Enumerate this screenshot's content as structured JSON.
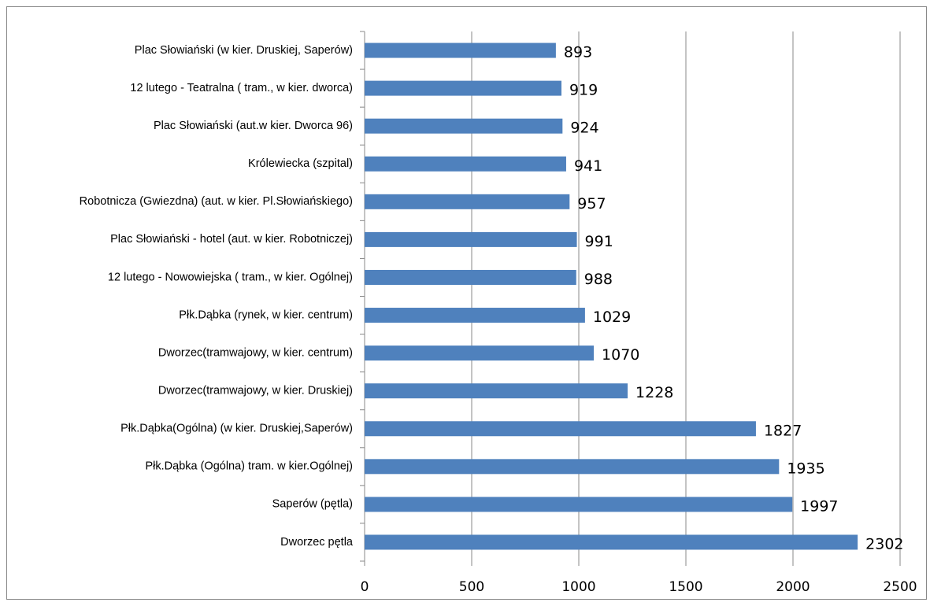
{
  "chart_data": {
    "type": "bar",
    "orientation": "horizontal",
    "categories": [
      "Plac Słowiański (w kier. Druskiej, Saperów)",
      "12 lutego - Teatralna ( tram.,  w kier. dworca)",
      "Plac Słowiański (aut.w kier. Dworca  96)",
      "Królewiecka (szpital)",
      "Robotnicza (Gwiezdna) (aut. w kier. Pl.Słowiańskiego)",
      "Plac Słowiański - hotel (aut. w kier. Robotniczej)",
      "12 lutego - Nowowiejska ( tram.,  w kier. Ogólnej)",
      "Płk.Dąbka (rynek, w kier. centrum)",
      "Dworzec(tramwajowy, w kier. centrum)",
      "Dworzec(tramwajowy, w kier. Druskiej)",
      "Płk.Dąbka(Ogólna) (w kier. Druskiej,Saperów)",
      "Płk.Dąbka (Ogólna) tram. w kier.Ogólnej)",
      "Saperów (pętla)",
      "Dworzec pętla"
    ],
    "values": [
      893,
      919,
      924,
      941,
      957,
      991,
      988,
      1029,
      1070,
      1228,
      1827,
      1935,
      1997,
      2302
    ],
    "color": "#4f81bd",
    "xlim": [
      0,
      2500
    ],
    "xticks": [
      0,
      500,
      1000,
      1500,
      2000,
      2500
    ],
    "grid": true
  }
}
